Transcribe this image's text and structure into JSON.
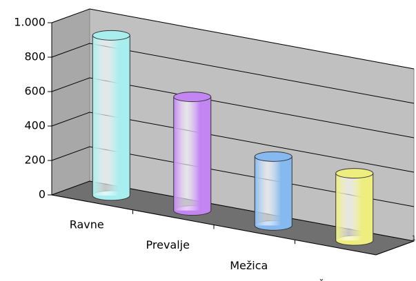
{
  "chart_data": {
    "type": "cylinder",
    "categories": [
      "Ravne",
      "Prevalje",
      "Mežica",
      "Črna"
    ],
    "values": [
      930,
      660,
      400,
      390
    ],
    "colors": [
      "#a8eeee",
      "#c285f2",
      "#86b9f0",
      "#eeee7e"
    ],
    "ylim": [
      0,
      1000
    ],
    "yticks": [
      0,
      200,
      400,
      600,
      800,
      {
        "value": 1000,
        "label": "1.000"
      }
    ],
    "grid": true,
    "depth_label": "1"
  }
}
